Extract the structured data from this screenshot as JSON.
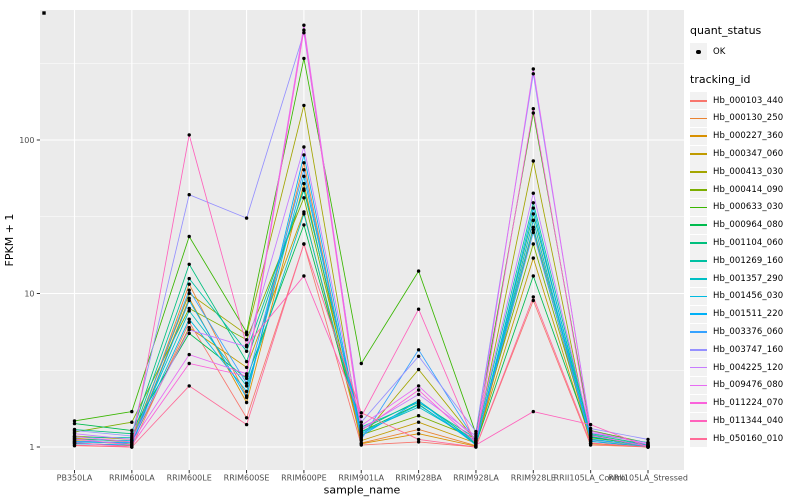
{
  "legend": {
    "quant_status": {
      "title": "quant_status",
      "items": [
        {
          "label": "OK",
          "marker": "point",
          "color": "#000000"
        }
      ]
    },
    "tracking_id": {
      "title": "tracking_id"
    }
  },
  "chart_data": {
    "type": "line",
    "title": "",
    "xlabel": "sample_name",
    "ylabel": "FPKM + 1",
    "y_scale": "log10",
    "ylim": [
      0.95,
      700
    ],
    "y_ticks": [
      {
        "value": 1,
        "label": "1"
      },
      {
        "value": 10,
        "label": "10"
      },
      {
        "value": 100,
        "label": "100"
      }
    ],
    "y_minor_breaks": [
      3.162,
      31.62,
      316.2
    ],
    "grid": "major-white-on-gray",
    "legend_position": "right",
    "panel_background": "#EBEBEB",
    "gridline_color": "#FFFFFF",
    "tick_color": "#333333",
    "tick_label_color": "#4D4D4D",
    "point_color": "#000000",
    "stray_corner_point": true,
    "categories": [
      "PB350LA",
      "RRIM600LA",
      "RRIM600LE",
      "RRIM600SE",
      "RRIM600PE",
      "RRIM901LA",
      "RRIM928BA",
      "RRIM928LA",
      "RRIM928LE",
      "RRII105LA_Control",
      "RRII105LA_Stressed"
    ],
    "series": [
      {
        "name": "Hb_000103_440",
        "color": "#F8766D",
        "values": [
          1.02,
          1.0,
          6.5,
          1.55,
          21,
          1.03,
          1.08,
          1.0,
          9.0,
          1.03,
          1.0
        ]
      },
      {
        "name": "Hb_000130_250",
        "color": "#EA8331",
        "values": [
          1.06,
          1.02,
          11.5,
          2.15,
          71,
          1.06,
          1.3,
          1.02,
          30,
          1.06,
          1.0
        ]
      },
      {
        "name": "Hb_000227_360",
        "color": "#D89000",
        "values": [
          1.1,
          1.04,
          9.3,
          1.95,
          52,
          1.05,
          1.22,
          1.01,
          26,
          1.05,
          1.0
        ]
      },
      {
        "name": "Hb_000347_060",
        "color": "#C09B00",
        "values": [
          1.14,
          1.08,
          6.0,
          3.3,
          34,
          1.1,
          1.45,
          1.06,
          17,
          1.09,
          1.01
        ]
      },
      {
        "name": "Hb_000413_030",
        "color": "#A3A500",
        "values": [
          1.18,
          1.12,
          10.0,
          5.4,
          168,
          1.15,
          3.2,
          1.1,
          73,
          1.12,
          1.02
        ]
      },
      {
        "name": "Hb_000414_090",
        "color": "#7CAE00",
        "values": [
          1.25,
          1.45,
          8.0,
          5.0,
          42,
          1.2,
          1.6,
          1.14,
          21,
          1.15,
          1.03
        ]
      },
      {
        "name": "Hb_000633_030",
        "color": "#39B600",
        "values": [
          1.48,
          1.7,
          23.5,
          5.6,
          340,
          3.5,
          14.0,
          1.22,
          150,
          1.28,
          1.06
        ]
      },
      {
        "name": "Hb_000964_080",
        "color": "#00BB4E",
        "values": [
          1.42,
          1.28,
          5.5,
          2.8,
          28,
          1.26,
          1.9,
          1.05,
          13,
          1.16,
          1.02
        ]
      },
      {
        "name": "Hb_001104_060",
        "color": "#00BF7D",
        "values": [
          1.3,
          1.22,
          15.5,
          3.6,
          48,
          1.3,
          2.0,
          1.08,
          33,
          1.2,
          1.04
        ]
      },
      {
        "name": "Hb_001269_160",
        "color": "#00C1A3",
        "values": [
          1.16,
          1.15,
          12.5,
          4.2,
          47,
          1.35,
          1.95,
          1.14,
          39,
          1.22,
          1.07
        ]
      },
      {
        "name": "Hb_001357_290",
        "color": "#00BFC4",
        "values": [
          1.12,
          1.1,
          7.7,
          2.5,
          33,
          1.25,
          1.82,
          1.1,
          27,
          1.17,
          1.03
        ]
      },
      {
        "name": "Hb_001456_030",
        "color": "#00BAE0",
        "values": [
          1.08,
          1.06,
          6.8,
          2.3,
          58,
          1.22,
          1.88,
          1.07,
          30,
          1.13,
          1.01
        ]
      },
      {
        "name": "Hb_001511_220",
        "color": "#00B0F6",
        "values": [
          1.05,
          1.03,
          9.0,
          2.1,
          80,
          1.18,
          2.0,
          1.03,
          36,
          1.09,
          1.0
        ]
      },
      {
        "name": "Hb_003376_060",
        "color": "#35A2FF",
        "values": [
          1.09,
          1.07,
          10.5,
          2.6,
          64,
          1.12,
          4.3,
          1.09,
          25,
          1.11,
          1.02
        ]
      },
      {
        "name": "Hb_003747_160",
        "color": "#9590FF",
        "values": [
          1.28,
          1.18,
          44.0,
          31.0,
          500,
          1.45,
          3.9,
          1.26,
          270,
          1.32,
          1.12
        ]
      },
      {
        "name": "Hb_004225_120",
        "color": "#C77CFF",
        "values": [
          1.22,
          1.12,
          5.8,
          4.5,
          90,
          1.32,
          2.2,
          1.18,
          45,
          1.24,
          1.06
        ]
      },
      {
        "name": "Hb_009476_080",
        "color": "#E76BF3",
        "values": [
          1.17,
          1.08,
          4.0,
          3.0,
          560,
          1.38,
          2.5,
          1.12,
          290,
          1.27,
          1.04
        ]
      },
      {
        "name": "Hb_011224_070",
        "color": "#FA62DB",
        "values": [
          1.13,
          1.03,
          3.5,
          2.9,
          520,
          1.28,
          2.35,
          1.07,
          160,
          1.19,
          1.01
        ]
      },
      {
        "name": "Hb_011344_040",
        "color": "#FF62BC",
        "values": [
          1.07,
          1.0,
          108,
          4.6,
          13,
          1.58,
          7.9,
          1.03,
          1.7,
          1.4,
          1.0
        ]
      },
      {
        "name": "Hb_050160_010",
        "color": "#FF6A98",
        "values": [
          1.03,
          1.0,
          2.5,
          1.4,
          21,
          1.67,
          1.12,
          1.0,
          9.5,
          1.06,
          1.0
        ]
      }
    ]
  }
}
